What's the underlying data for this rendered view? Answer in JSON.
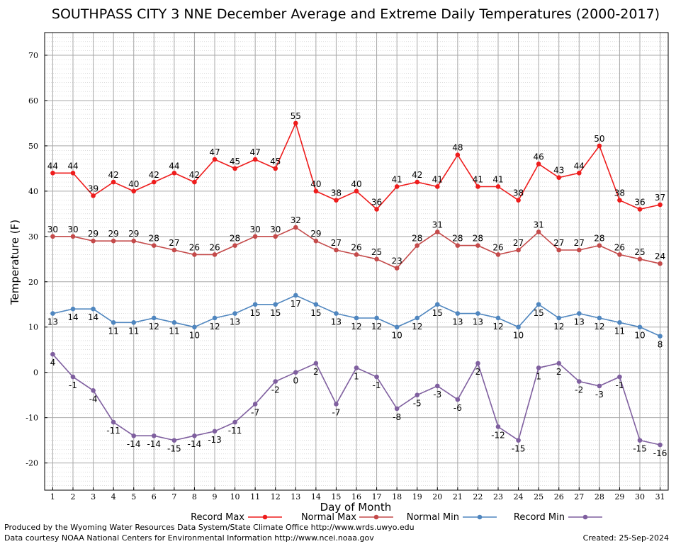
{
  "chart_data": {
    "type": "line",
    "title": "SOUTHPASS CITY 3 NNE December Average and Extreme Daily Temperatures (2000-2017)",
    "xlabel": "Day of Month",
    "ylabel": "Temperature (F)",
    "ylim": [
      -26,
      75
    ],
    "xlim": [
      0.6,
      31.4
    ],
    "yticks": [
      -20,
      -10,
      0,
      10,
      20,
      30,
      40,
      50,
      60,
      70
    ],
    "grid": true,
    "legend_position": "bottom",
    "x": [
      1,
      2,
      3,
      4,
      5,
      6,
      7,
      8,
      9,
      10,
      11,
      12,
      13,
      14,
      15,
      16,
      17,
      18,
      19,
      20,
      21,
      22,
      23,
      24,
      25,
      26,
      27,
      28,
      29,
      30,
      31
    ],
    "series": [
      {
        "name": "Record Max",
        "color": "#ee1c1c",
        "values": [
          44,
          44,
          39,
          42,
          40,
          42,
          44,
          42,
          47,
          45,
          47,
          45,
          55,
          40,
          38,
          40,
          36,
          41,
          42,
          41,
          48,
          41,
          41,
          38,
          46,
          43,
          44,
          50,
          38,
          36,
          37
        ]
      },
      {
        "name": "Normal Max",
        "color": "#c44a4a",
        "values": [
          30,
          30,
          29,
          29,
          29,
          28,
          27,
          26,
          26,
          28,
          30,
          30,
          32,
          29,
          27,
          26,
          25,
          23,
          28,
          31,
          28,
          28,
          26,
          27,
          31,
          27,
          27,
          28,
          26,
          25,
          24
        ]
      },
      {
        "name": "Normal Min",
        "color": "#4f86bf",
        "values": [
          13,
          14,
          14,
          11,
          11,
          12,
          11,
          10,
          12,
          13,
          15,
          15,
          17,
          15,
          13,
          12,
          12,
          10,
          12,
          15,
          13,
          13,
          12,
          10,
          15,
          12,
          13,
          12,
          11,
          10,
          8
        ]
      },
      {
        "name": "Record Min",
        "color": "#7f5f9f",
        "values": [
          4,
          -1,
          -4,
          -11,
          -14,
          -14,
          -15,
          -14,
          -13,
          -11,
          -7,
          -2,
          0,
          2,
          -7,
          1,
          -1,
          -8,
          -5,
          -3,
          -6,
          2,
          -12,
          -15,
          1,
          2,
          -2,
          -3,
          -1,
          -15,
          -16
        ]
      }
    ]
  },
  "footer": {
    "line1": "Produced by the Wyoming Water Resources Data System/State Climate Office http://www.wrds.uwyo.edu",
    "line2": "Data courtesy NOAA National Centers for Environmental Information http://www.ncei.noaa.gov",
    "created": "Created:  25-Sep-2024"
  }
}
